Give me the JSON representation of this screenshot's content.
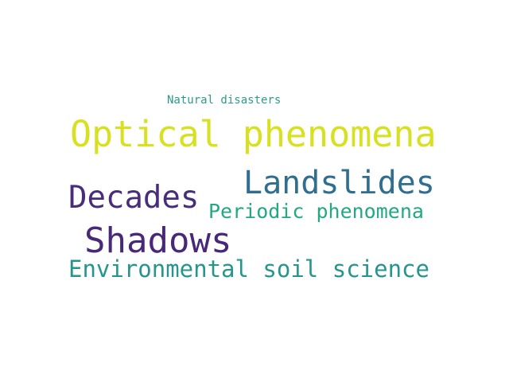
{
  "words": [
    {
      "text": "Natural disasters",
      "color": "#2e9a8e"
    },
    {
      "text": "Optical phenomena",
      "color": "#d8e121"
    },
    {
      "text": "Landslides",
      "color": "#2f6e8e"
    },
    {
      "text": "Decades",
      "color": "#472d7b"
    },
    {
      "text": "Periodic phenomena",
      "color": "#23a883"
    },
    {
      "text": "Shadows",
      "color": "#482878"
    },
    {
      "text": "Environmental soil science",
      "color": "#26958e"
    }
  ]
}
